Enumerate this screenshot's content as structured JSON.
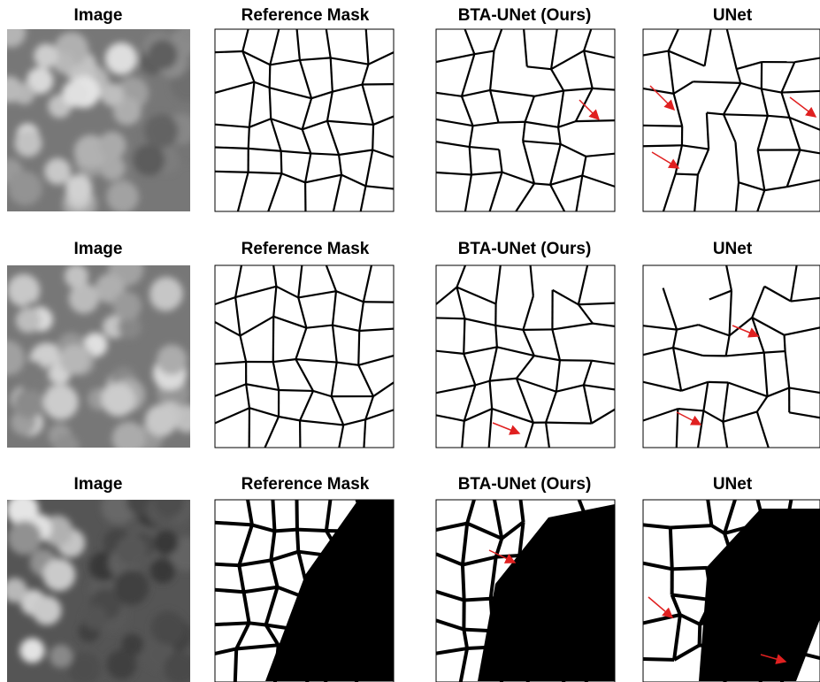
{
  "figure": {
    "rows": [
      {
        "panels": [
          {
            "title": "Image"
          },
          {
            "title": "Reference Mask"
          },
          {
            "title": "BTA-UNet (Ours)"
          },
          {
            "title": "UNet"
          }
        ]
      },
      {
        "panels": [
          {
            "title": "Image"
          },
          {
            "title": "Reference Mask"
          },
          {
            "title": "BTA-UNet (Ours)"
          },
          {
            "title": "UNet"
          }
        ]
      },
      {
        "panels": [
          {
            "title": "Image"
          },
          {
            "title": "Reference Mask"
          },
          {
            "title": "BTA-UNet (Ours)"
          },
          {
            "title": "UNet"
          }
        ]
      }
    ]
  }
}
